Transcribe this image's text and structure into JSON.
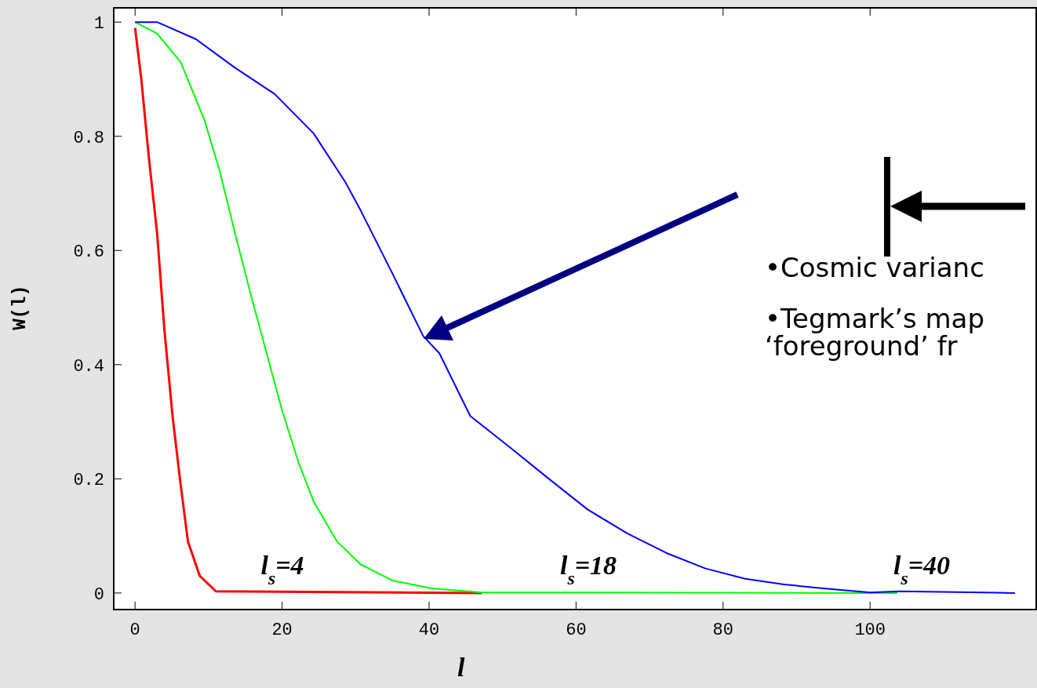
{
  "chart_data": {
    "type": "line",
    "xlabel": "l",
    "ylabel": "W(l)",
    "xlim": [
      -2.9,
      122.6
    ],
    "ylim": [
      -0.029,
      1.025
    ],
    "xticks": [
      0,
      20,
      40,
      60,
      80,
      100
    ],
    "yticks": [
      0,
      {
        "value": 0.2,
        "label": "0.2"
      },
      {
        "value": 0.4,
        "label": "0.4"
      },
      {
        "value": 0.6,
        "label": "0.6"
      },
      {
        "value": 0.8,
        "label": "0.8"
      },
      1
    ],
    "grid": false,
    "series": [
      {
        "color": "#ff0000",
        "x": [
          0,
          0.85,
          1.9,
          3,
          4,
          5.1,
          6.2,
          7.2,
          8.8,
          11,
          47.2
        ],
        "values": [
          0.99,
          0.9,
          0.76,
          0.63,
          0.46,
          0.31,
          0.19,
          0.09,
          0.03,
          0.003,
          0
        ]
      },
      {
        "color": "#00ff00",
        "x": [
          0,
          3,
          6.2,
          9.4,
          11.5,
          13.6,
          15.8,
          17.9,
          20,
          22.2,
          24.3,
          27.5,
          30.7,
          35,
          40.3,
          47.2,
          103.7
        ],
        "values": [
          1,
          0.98,
          0.93,
          0.83,
          0.74,
          0.63,
          0.52,
          0.42,
          0.32,
          0.23,
          0.16,
          0.09,
          0.05,
          0.022,
          0.008,
          0.001,
          0
        ]
      },
      {
        "color": "#0000ff",
        "x": [
          0,
          3,
          8.3,
          13.6,
          19,
          24.3,
          28.6,
          30.7,
          35,
          39.2,
          41.4,
          45.6,
          51,
          56.3,
          61.6,
          67,
          72.3,
          77.6,
          83,
          88.3,
          93.6,
          100,
          104,
          119.7
        ],
        "values": [
          1,
          1,
          0.97,
          0.92,
          0.874,
          0.805,
          0.72,
          0.67,
          0.56,
          0.45,
          0.42,
          0.31,
          0.255,
          0.2,
          0.146,
          0.104,
          0.07,
          0.043,
          0.025,
          0.015,
          0.008,
          0.001,
          0.003,
          0
        ]
      }
    ],
    "annotations": [
      "l$_{s}$=4",
      "l$_{s}$=18",
      "l$_{s}$=40",
      "•Cosmic varianc",
      "•Tegmark’s map",
      "‘foreground’  fr"
    ]
  }
}
